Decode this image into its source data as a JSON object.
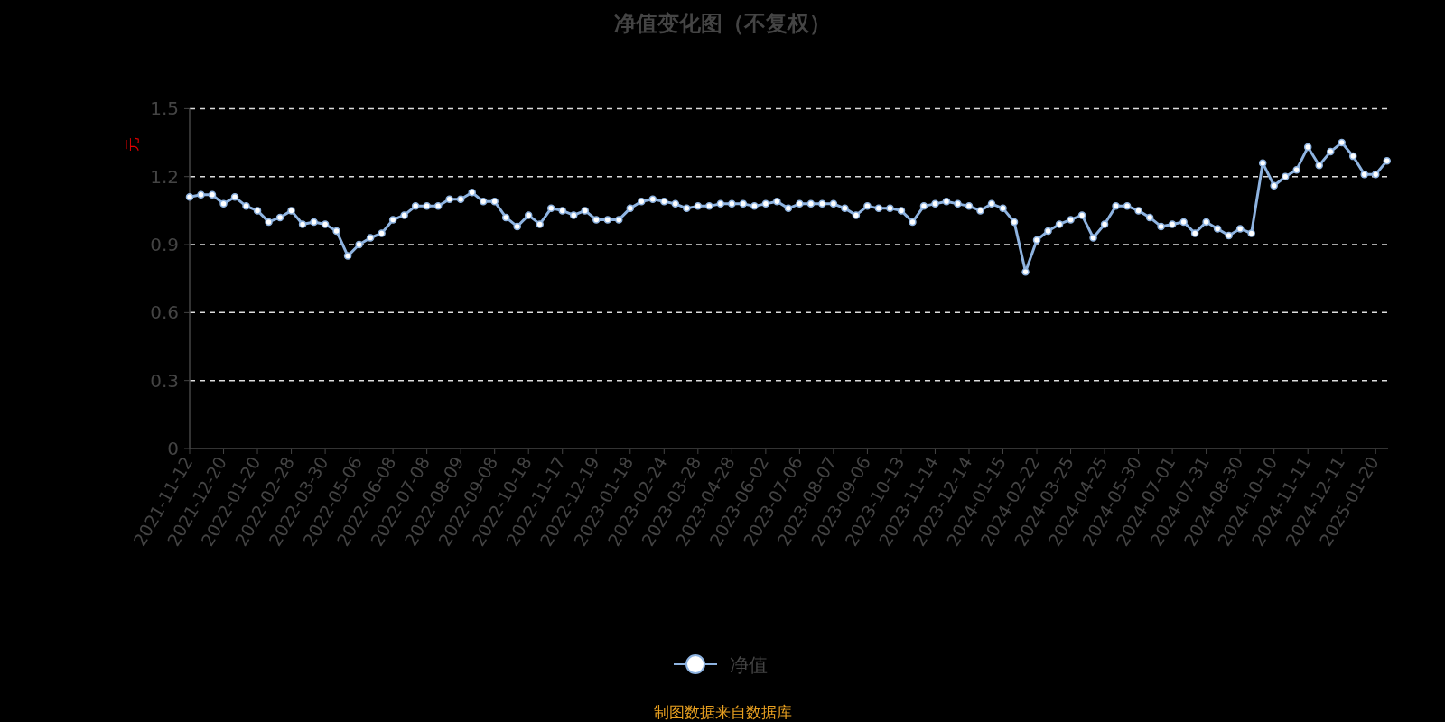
{
  "chart_data": {
    "type": "line",
    "title": "净值变化图（不复权）",
    "ylabel": "元",
    "categories": [
      "2021-11-12",
      null,
      null,
      "2021-12-20",
      null,
      null,
      "2022-01-20",
      null,
      null,
      "2022-02-28",
      null,
      null,
      "2022-03-30",
      null,
      null,
      "2022-05-06",
      null,
      null,
      "2022-06-08",
      null,
      null,
      "2022-07-08",
      null,
      null,
      "2022-08-09",
      null,
      null,
      "2022-09-08",
      null,
      null,
      "2022-10-18",
      null,
      null,
      "2022-11-17",
      null,
      null,
      "2022-12-19",
      null,
      null,
      "2023-01-18",
      null,
      null,
      "2023-02-24",
      null,
      null,
      "2023-03-28",
      null,
      null,
      "2023-04-28",
      null,
      null,
      "2023-06-02",
      null,
      null,
      "2023-07-06",
      null,
      null,
      "2023-08-07",
      null,
      null,
      "2023-09-06",
      null,
      null,
      "2023-10-13",
      null,
      null,
      "2023-11-14",
      null,
      null,
      "2023-12-14",
      null,
      null,
      "2024-01-15",
      null,
      null,
      "2024-02-22",
      null,
      null,
      "2024-03-25",
      null,
      null,
      "2024-04-25",
      null,
      null,
      "2024-05-30",
      null,
      null,
      "2024-07-01",
      null,
      null,
      "2024-07-31",
      null,
      null,
      "2024-08-30",
      null,
      null,
      "2024-10-10",
      null,
      null,
      "2024-11-11",
      null,
      null,
      "2024-12-11",
      null,
      null,
      "2025-01-20",
      null
    ],
    "series": [
      {
        "name": "净值",
        "color": "#8eb3e0",
        "values": [
          1.11,
          1.12,
          1.12,
          1.08,
          1.11,
          1.07,
          1.05,
          1.0,
          1.02,
          1.05,
          0.99,
          1.0,
          0.99,
          0.96,
          0.85,
          0.9,
          0.93,
          0.95,
          1.01,
          1.03,
          1.07,
          1.07,
          1.07,
          1.1,
          1.1,
          1.13,
          1.09,
          1.09,
          1.02,
          0.98,
          1.03,
          0.99,
          1.06,
          1.05,
          1.03,
          1.05,
          1.01,
          1.01,
          1.01,
          1.06,
          1.09,
          1.1,
          1.09,
          1.08,
          1.06,
          1.07,
          1.07,
          1.08,
          1.08,
          1.08,
          1.07,
          1.08,
          1.09,
          1.06,
          1.08,
          1.08,
          1.08,
          1.08,
          1.06,
          1.03,
          1.07,
          1.06,
          1.06,
          1.05,
          1.0,
          1.07,
          1.08,
          1.09,
          1.08,
          1.07,
          1.05,
          1.08,
          1.06,
          1.0,
          0.78,
          0.92,
          0.96,
          0.99,
          1.01,
          1.03,
          0.93,
          0.99,
          1.07,
          1.07,
          1.05,
          1.02,
          0.98,
          0.99,
          1.0,
          0.95,
          1.0,
          0.97,
          0.94,
          0.97,
          0.95,
          1.26,
          1.16,
          1.2,
          1.23,
          1.33,
          1.25,
          1.31,
          1.35,
          1.29,
          1.21,
          1.21,
          1.27
        ]
      }
    ],
    "ylim": [
      0,
      1.5
    ],
    "yticks": [
      0,
      0.3,
      0.6,
      0.9,
      1.2,
      1.5
    ],
    "grid": "y",
    "marker": "circle",
    "line_style": "solid",
    "legend": "bottom",
    "annotations": [
      "制图数据来自数据库"
    ]
  }
}
